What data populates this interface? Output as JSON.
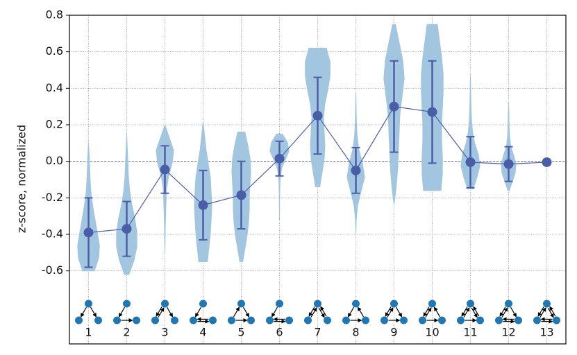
{
  "chart_data": {
    "type": "violin",
    "ylabel": "z-score, normalized",
    "categories": [
      "1",
      "2",
      "3",
      "4",
      "5",
      "6",
      "7",
      "8",
      "9",
      "10",
      "11",
      "12",
      "13"
    ],
    "values": [
      -0.39,
      -0.37,
      -0.045,
      -0.24,
      -0.185,
      0.015,
      0.25,
      -0.05,
      0.3,
      0.27,
      -0.005,
      -0.015,
      -0.005
    ],
    "errors": [
      0.19,
      0.15,
      0.13,
      0.19,
      0.185,
      0.095,
      0.21,
      0.125,
      0.25,
      0.28,
      0.14,
      0.095,
      0
    ],
    "violins": [
      {
        "max": 0.1,
        "min": -0.6,
        "density": [
          0,
          0.05,
          0.08,
          0.12,
          0.18,
          0.3,
          0.45,
          0.6,
          0.75,
          0.7,
          0.4
        ]
      },
      {
        "max": 0.15,
        "min": -0.62,
        "density": [
          0,
          0.04,
          0.08,
          0.12,
          0.2,
          0.35,
          0.55,
          0.7,
          0.7,
          0.5,
          0.15
        ]
      },
      {
        "max": 0.2,
        "min": -0.5,
        "density": [
          0,
          0.3,
          0.6,
          0.5,
          0.25,
          0.12,
          0.08,
          0.05,
          0.03,
          0.02,
          0
        ]
      },
      {
        "max": 0.22,
        "min": -0.55,
        "density": [
          0,
          0.1,
          0.2,
          0.35,
          0.5,
          0.55,
          0.6,
          0.55,
          0.5,
          0.4,
          0.3
        ]
      },
      {
        "max": 0.16,
        "min": -0.55,
        "density": [
          0.25,
          0.45,
          0.6,
          0.65,
          0.6,
          0.55,
          0.55,
          0.5,
          0.4,
          0.25,
          0.1
        ]
      },
      {
        "max": 0.15,
        "min": -0.32,
        "density": [
          0.2,
          0.55,
          0.65,
          0.4,
          0.15,
          0.06,
          0.03,
          0.02,
          0.01,
          0.01,
          0
        ]
      },
      {
        "max": 0.62,
        "min": -0.14,
        "density": [
          0.6,
          0.85,
          0.85,
          0.7,
          0.5,
          0.4,
          0.45,
          0.5,
          0.45,
          0.3,
          0.15
        ]
      },
      {
        "max": 0.38,
        "min": -0.4,
        "density": [
          0,
          0.02,
          0.04,
          0.08,
          0.2,
          0.45,
          0.6,
          0.35,
          0.12,
          0.03,
          0
        ]
      },
      {
        "max": 0.75,
        "min": -0.24,
        "density": [
          0.1,
          0.35,
          0.6,
          0.7,
          0.55,
          0.4,
          0.35,
          0.3,
          0.25,
          0.15,
          0
        ]
      },
      {
        "max": 0.75,
        "min": -0.16,
        "density": [
          0.35,
          0.5,
          0.65,
          0.75,
          0.75,
          0.7,
          0.65,
          0.65,
          0.7,
          0.7,
          0.6
        ]
      },
      {
        "max": 0.47,
        "min": -0.15,
        "density": [
          0,
          0.02,
          0.03,
          0.05,
          0.08,
          0.15,
          0.3,
          0.55,
          0.65,
          0.45,
          0.2
        ]
      },
      {
        "max": 0.32,
        "min": -0.16,
        "density": [
          0,
          0.02,
          0.03,
          0.05,
          0.08,
          0.15,
          0.35,
          0.5,
          0.45,
          0.25,
          0.05
        ]
      },
      null
    ],
    "ylim": [
      -1.0,
      0.8
    ],
    "yticks": [
      -0.6,
      -0.4,
      -0.2,
      {
        "value": 0,
        "label": "0.0"
      },
      0.2,
      0.4,
      0.6,
      0.8
    ],
    "hline": 0,
    "grid": true,
    "violin_color": "#a3c6e0",
    "mean_color": "#4a5ea8",
    "node_color": "#1f77b4"
  }
}
